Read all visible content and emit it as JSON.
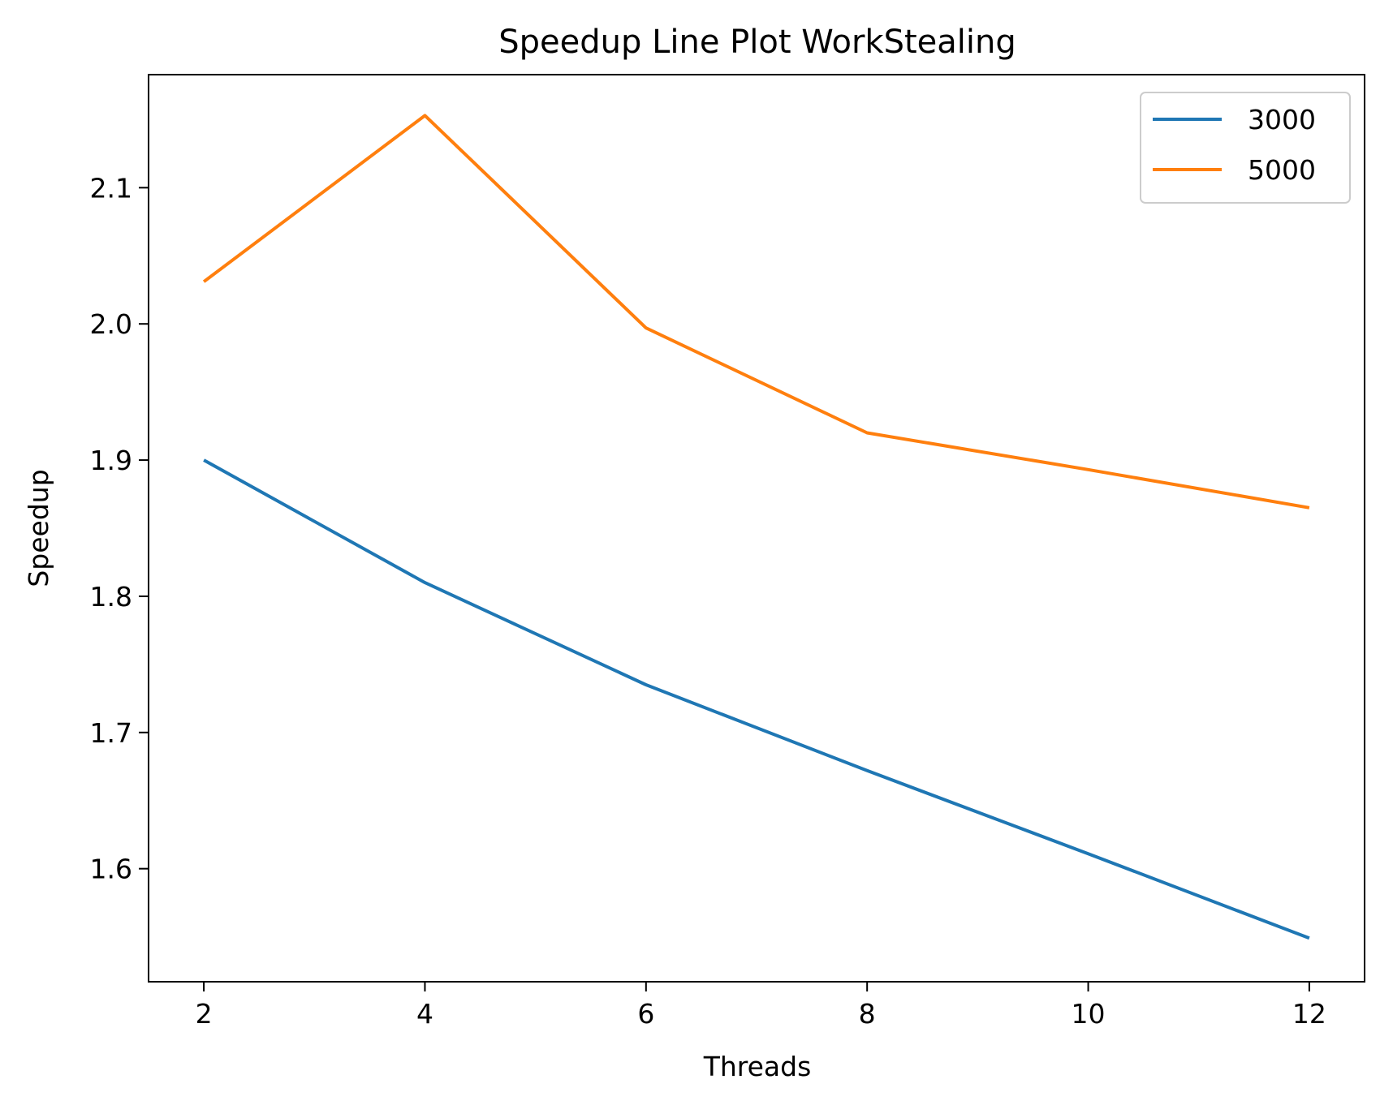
{
  "chart_data": {
    "type": "line",
    "title": "Speedup Line Plot WorkStealing",
    "xlabel": "Threads",
    "ylabel": "Speedup",
    "x": [
      2,
      4,
      6,
      8,
      10,
      12
    ],
    "xticks": [
      2,
      4,
      6,
      8,
      10,
      12
    ],
    "yticks": [
      1.6,
      1.7,
      1.8,
      1.9,
      2.0,
      2.1
    ],
    "xlim": [
      1.5,
      12.5
    ],
    "ylim": [
      1.517,
      2.183
    ],
    "grid": false,
    "legend": "top-right",
    "series": [
      {
        "name": "3000",
        "color": "#1f77b4",
        "values": [
          1.9,
          1.81,
          1.735,
          1.672,
          1.611,
          1.549
        ]
      },
      {
        "name": "5000",
        "color": "#ff7f0e",
        "values": [
          2.031,
          2.153,
          1.997,
          1.92,
          1.893,
          1.865
        ]
      }
    ]
  }
}
